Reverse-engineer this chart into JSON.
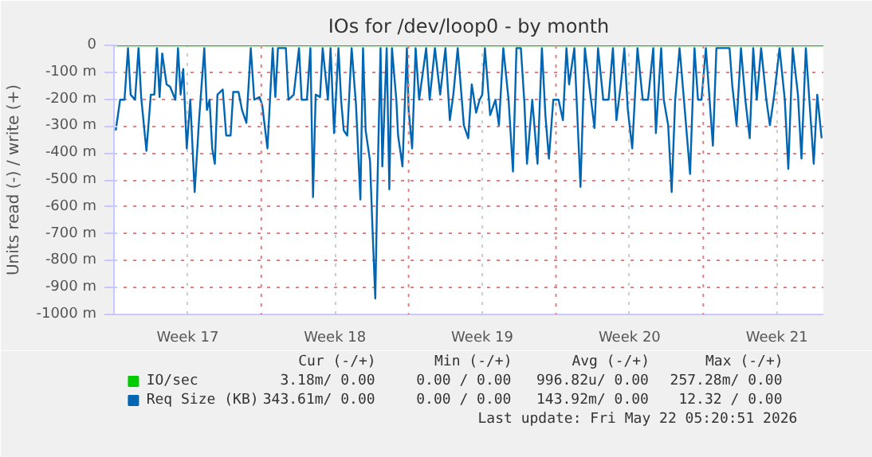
{
  "chart_data": {
    "type": "line",
    "title": "IOs for /dev/loop0 - by month",
    "ylabel": "Units read (-) / write (+)",
    "xlim": [
      "2026-04-20T00:00",
      "2026-05-23T17:00"
    ],
    "ylim": [
      -1000,
      0
    ],
    "xticks": [
      {
        "value": "2026-04-23T12:00",
        "label": "Week 17"
      },
      {
        "value": "2026-04-30T12:00",
        "label": "Week 18"
      },
      {
        "value": "2026-05-07T12:00",
        "label": "Week 19"
      },
      {
        "value": "2026-05-14T12:00",
        "label": "Week 20"
      },
      {
        "value": "2026-05-21T12:00",
        "label": "Week 21"
      }
    ],
    "yticks": [
      0,
      {
        "value": -100,
        "label": "-100 m"
      },
      {
        "value": -200,
        "label": "-200 m"
      },
      {
        "value": -300,
        "label": "-300 m"
      },
      {
        "value": -400,
        "label": "-400 m"
      },
      {
        "value": -500,
        "label": "-500 m"
      },
      {
        "value": -600,
        "label": "-600 m"
      },
      {
        "value": -700,
        "label": "-700 m"
      },
      {
        "value": -800,
        "label": "-800 m"
      },
      {
        "value": -900,
        "label": "-900 m"
      },
      {
        "value": -1000,
        "label": "-1000 m"
      }
    ],
    "grid": true,
    "legend": "bottom left",
    "line_style": "solid",
    "ref_lines": [
      {
        "axis": "x",
        "value": "2026-04-27",
        "label": null,
        "color": "#e08080",
        "line_style": "dotted"
      },
      {
        "axis": "x",
        "value": "2026-05-04",
        "label": null,
        "color": "#e08080",
        "line_style": "dotted"
      },
      {
        "axis": "x",
        "value": "2026-05-11",
        "label": null,
        "color": "#e08080",
        "line_style": "dotted"
      },
      {
        "axis": "x",
        "value": "2026-05-18",
        "label": null,
        "color": "#e08080",
        "line_style": "dotted"
      }
    ],
    "series": [
      {
        "name": "IO/sec",
        "color": "#00cc00",
        "x": [
          "2026-04-20T00:00",
          "2026-05-23T17:00"
        ],
        "values": [
          0,
          0
        ]
      },
      {
        "name": "Req Size (KB)",
        "color": "#0066b3",
        "x": [
          "2026-04-20T02:00",
          "2026-04-20T07:00",
          "2026-04-20T12:00",
          "2026-04-20T16:00",
          "2026-04-20T19:00",
          "2026-04-21T00:00",
          "2026-04-21T04:00",
          "2026-04-21T07:00",
          "2026-04-21T13:00",
          "2026-04-21T18:00",
          "2026-04-21T22:00",
          "2026-04-22T01:00",
          "2026-04-22T04:00",
          "2026-04-22T07:00",
          "2026-04-22T12:00",
          "2026-04-22T16:00",
          "2026-04-22T22:00",
          "2026-04-23T01:00",
          "2026-04-23T04:00",
          "2026-04-23T07:00",
          "2026-04-23T11:00",
          "2026-04-23T15:00",
          "2026-04-23T20:00",
          "2026-04-24T01:00",
          "2026-04-24T07:00",
          "2026-04-24T10:00",
          "2026-04-24T13:00",
          "2026-04-24T16:00",
          "2026-04-24T19:00",
          "2026-04-24T22:00",
          "2026-04-25T04:00",
          "2026-04-25T08:00",
          "2026-04-25T13:00",
          "2026-04-25T16:00",
          "2026-04-25T22:00",
          "2026-04-26T02:00",
          "2026-04-26T07:00",
          "2026-04-26T12:00",
          "2026-04-26T16:00",
          "2026-04-26T22:00",
          "2026-04-27T01:00",
          "2026-04-27T07:00",
          "2026-04-27T13:00",
          "2026-04-27T16:00",
          "2026-04-27T19:00",
          "2026-04-28T04:00",
          "2026-04-28T07:00",
          "2026-04-28T13:00",
          "2026-04-28T19:00",
          "2026-04-28T22:00",
          "2026-04-29T04:00",
          "2026-04-29T08:00",
          "2026-04-29T11:00",
          "2026-04-29T14:00",
          "2026-04-29T19:00",
          "2026-04-29T22:00",
          "2026-04-30T04:00",
          "2026-04-30T07:00",
          "2026-04-30T11:00",
          "2026-04-30T16:00",
          "2026-04-30T19:00",
          "2026-04-30T22:00",
          "2026-05-01T02:00",
          "2026-05-01T07:00",
          "2026-05-01T12:00",
          "2026-05-01T17:00",
          "2026-05-01T20:00",
          "2026-05-01T23:00",
          "2026-05-02T04:00",
          "2026-05-02T07:00",
          "2026-05-02T10:00",
          "2026-05-02T12:00",
          "2026-05-02T16:00",
          "2026-05-02T18:00",
          "2026-05-02T23:00",
          "2026-05-03T02:00",
          "2026-05-03T05:00",
          "2026-05-03T10:00",
          "2026-05-03T12:00",
          "2026-05-03T17:00",
          "2026-05-03T22:00",
          "2026-05-04T00:00",
          "2026-05-04T04:00",
          "2026-05-04T08:00",
          "2026-05-04T12:00",
          "2026-05-04T20:00",
          "2026-05-05T00:00",
          "2026-05-05T06:00",
          "2026-05-05T12:00",
          "2026-05-05T18:00",
          "2026-05-05T23:00",
          "2026-05-06T03:00",
          "2026-05-06T08:00",
          "2026-05-06T15:00",
          "2026-05-06T20:00",
          "2026-05-07T00:00",
          "2026-05-07T05:00",
          "2026-05-07T09:00",
          "2026-05-07T12:00",
          "2026-05-07T15:00",
          "2026-05-07T21:00",
          "2026-05-08T03:00",
          "2026-05-08T07:00",
          "2026-05-08T12:00",
          "2026-05-08T18:00",
          "2026-05-08T23:00",
          "2026-05-09T03:00",
          "2026-05-09T08:00",
          "2026-05-09T12:00",
          "2026-05-09T15:00",
          "2026-05-09T21:00",
          "2026-05-10T03:00",
          "2026-05-10T08:00",
          "2026-05-10T12:00",
          "2026-05-10T16:00",
          "2026-05-10T21:00",
          "2026-05-11T03:00",
          "2026-05-11T08:00",
          "2026-05-11T12:00",
          "2026-05-11T15:00",
          "2026-05-11T21:00",
          "2026-05-12T04:00",
          "2026-05-12T09:00",
          "2026-05-12T16:00",
          "2026-05-12T20:00",
          "2026-05-13T00:00",
          "2026-05-13T06:00",
          "2026-05-13T12:00",
          "2026-05-13T17:00",
          "2026-05-13T21:00",
          "2026-05-14T02:00",
          "2026-05-14T06:00",
          "2026-05-14T10:00",
          "2026-05-14T15:00",
          "2026-05-14T21:00",
          "2026-05-15T03:00",
          "2026-05-15T09:00",
          "2026-05-15T15:00",
          "2026-05-15T18:00",
          "2026-05-16T00:00",
          "2026-05-16T03:00",
          "2026-05-16T08:00",
          "2026-05-16T12:00",
          "2026-05-16T16:00",
          "2026-05-16T21:00",
          "2026-05-17T02:00",
          "2026-05-17T09:00",
          "2026-05-17T14:00",
          "2026-05-17T18:00",
          "2026-05-17T22:00",
          "2026-05-18T03:00",
          "2026-05-18T11:00",
          "2026-05-18T15:00",
          "2026-05-18T21:00",
          "2026-05-19T06:00",
          "2026-05-19T09:00",
          "2026-05-19T14:00",
          "2026-05-19T19:00",
          "2026-05-20T00:00",
          "2026-05-20T05:00",
          "2026-05-20T09:00",
          "2026-05-20T13:00",
          "2026-05-20T18:00",
          "2026-05-21T00:00",
          "2026-05-21T04:00",
          "2026-05-21T09:00",
          "2026-05-21T15:00",
          "2026-05-21T21:00",
          "2026-05-22T01:00",
          "2026-05-22T06:00",
          "2026-05-22T12:00",
          "2026-05-22T16:00",
          "2026-05-22T21:00",
          "2026-05-23T01:00",
          "2026-05-23T06:00",
          "2026-05-23T10:00",
          "2026-05-23T15:00"
        ],
        "values": [
          -316,
          -202,
          -202,
          -10,
          -183,
          -202,
          -10,
          -192,
          -392,
          -183,
          -183,
          -10,
          -192,
          -30,
          -145,
          -154,
          -202,
          -10,
          -183,
          -88,
          -383,
          -202,
          -545,
          -278,
          -10,
          -240,
          -202,
          -383,
          -440,
          -183,
          -164,
          -335,
          -335,
          -173,
          -173,
          -240,
          -288,
          -10,
          -202,
          -192,
          -221,
          -383,
          -10,
          -192,
          -10,
          -10,
          -202,
          -183,
          -10,
          -202,
          -202,
          -10,
          -564,
          -183,
          -192,
          -10,
          -202,
          -10,
          -326,
          -10,
          -202,
          -316,
          -335,
          -10,
          -221,
          -573,
          -10,
          -316,
          -430,
          -697,
          -941,
          -583,
          -10,
          -450,
          -10,
          -535,
          -10,
          -202,
          -335,
          -450,
          -10,
          -240,
          -383,
          -10,
          -202,
          -10,
          -202,
          -10,
          -183,
          -10,
          -278,
          -183,
          -10,
          -297,
          -345,
          -145,
          -250,
          -202,
          -183,
          -10,
          -259,
          -202,
          -297,
          -10,
          -202,
          -469,
          -10,
          -10,
          -211,
          -440,
          -202,
          -440,
          -10,
          -259,
          -421,
          -202,
          -202,
          -278,
          -10,
          -145,
          -10,
          -526,
          -10,
          -202,
          -307,
          -10,
          -202,
          -202,
          -10,
          -278,
          -145,
          -10,
          -240,
          -383,
          -10,
          -202,
          -202,
          -10,
          -326,
          -10,
          -202,
          -297,
          -545,
          -202,
          -10,
          -202,
          -478,
          -10,
          -202,
          -202,
          -10,
          -373,
          -10,
          -10,
          -10,
          -145,
          -297,
          -10,
          -202,
          -345,
          -10,
          -202,
          -10,
          -202,
          -297,
          -183,
          -10,
          -202,
          -459,
          -10,
          -183,
          -421,
          -10,
          -202,
          -440,
          -183,
          -345
        ]
      }
    ],
    "annotations": [
      "Cur (-/+)",
      "Min (-/+)",
      "Avg (-/+)",
      "Max (-/+)",
      "3.18m/  0.00",
      "0.00 /  0.00",
      "996.82u/  0.00",
      "257.28m/  0.00",
      "343.61m/  0.00",
      "0.00 /  0.00",
      "143.92m/  0.00",
      "12.32 /  0.00",
      "Last update: Fri May 22 05:20:51 2026"
    ]
  }
}
